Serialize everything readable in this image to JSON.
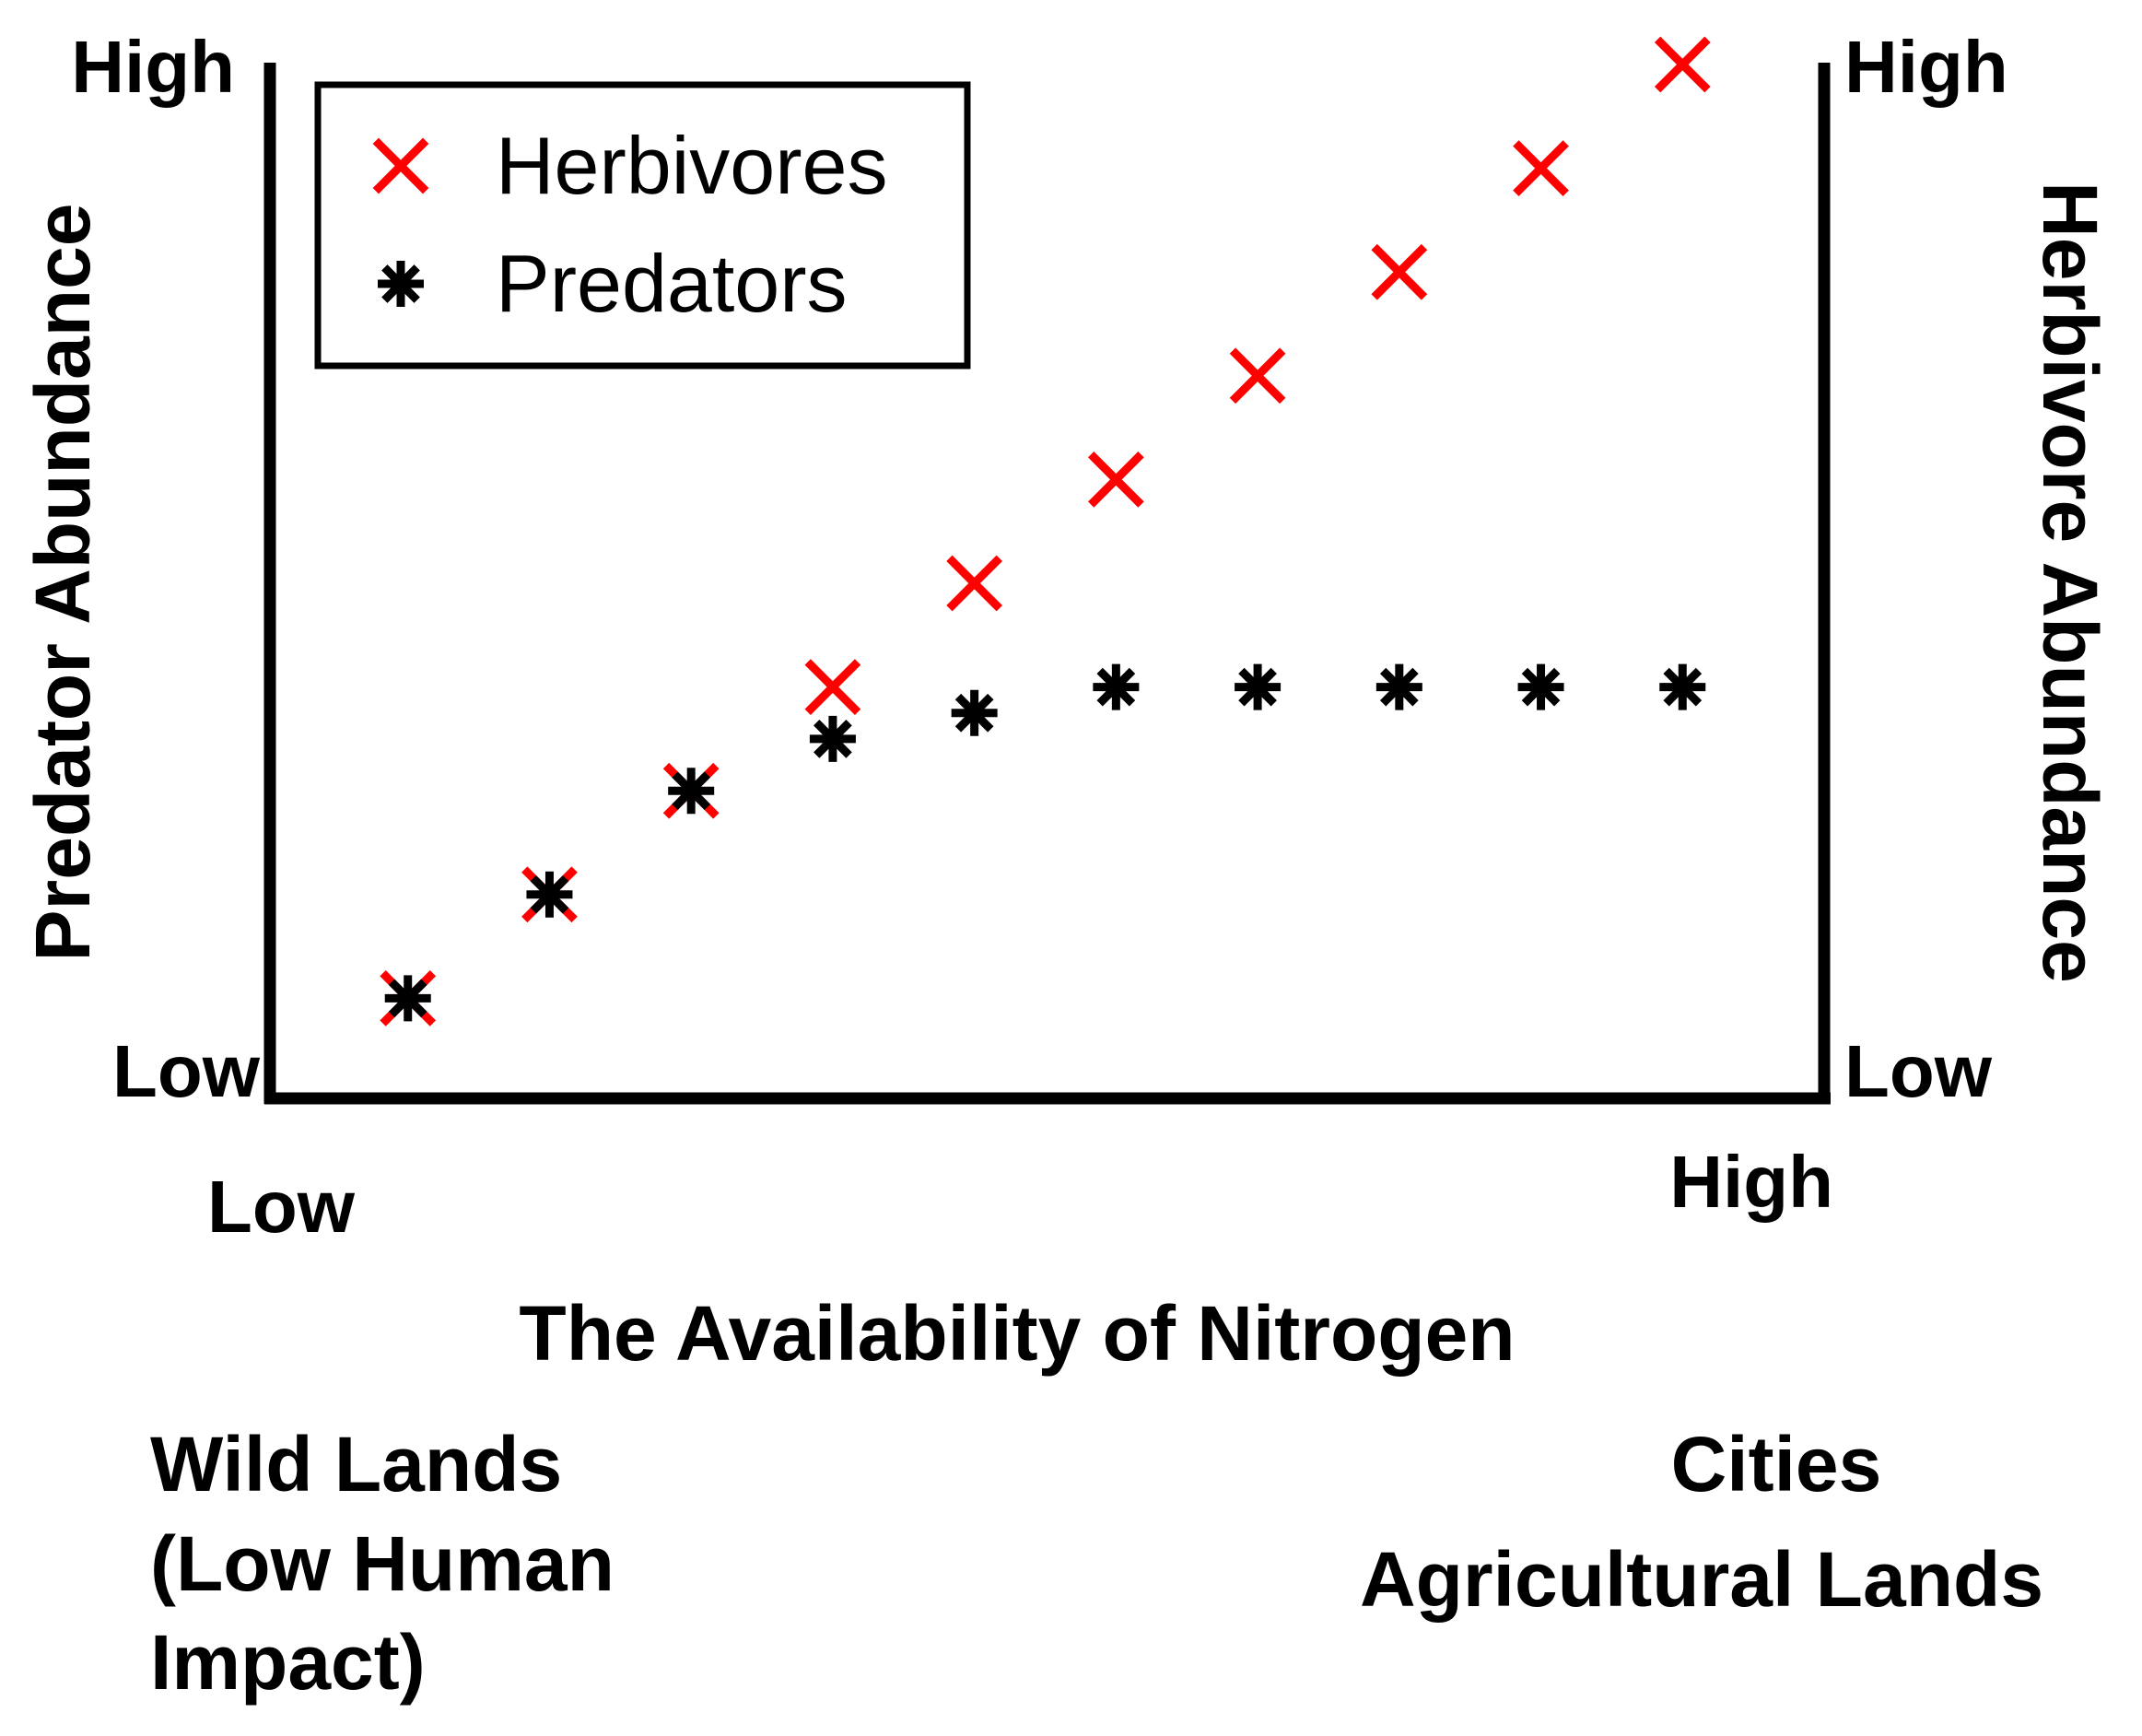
{
  "chart_data": {
    "type": "scatter",
    "title": "",
    "xlabel": "The Availability of Nitrogen",
    "ylabel_left": "Predator Abundance",
    "ylabel_right": "Herbivore Abundance",
    "x_ticks": {
      "low": "Low",
      "high": "High"
    },
    "y_left_ticks": {
      "low": "Low",
      "high": "High"
    },
    "y_right_ticks": {
      "low": "Low",
      "high": "High"
    },
    "xlim": [
      0,
      11
    ],
    "ylim": [
      0,
      10
    ],
    "grid": false,
    "legend_position": "top-left",
    "x": [
      1,
      2,
      3,
      4,
      5,
      6,
      7,
      8,
      9,
      10
    ],
    "series": [
      {
        "name": "Herbivores",
        "marker": "x",
        "color": "#ff0000",
        "values": [
          1.0,
          2.0,
          3.0,
          4.0,
          5.0,
          6.0,
          7.0,
          8.0,
          9.0,
          10.0
        ]
      },
      {
        "name": "Predators",
        "marker": "asterisk",
        "color": "#000000",
        "values": [
          1.0,
          2.0,
          3.0,
          3.5,
          3.75,
          4.0,
          4.0,
          4.0,
          4.0,
          4.0
        ]
      }
    ],
    "annotations": {
      "left": [
        "Wild Lands",
        "(Low Human",
        "Impact)"
      ],
      "right": [
        "Cities",
        "Agricultural Lands"
      ]
    }
  }
}
